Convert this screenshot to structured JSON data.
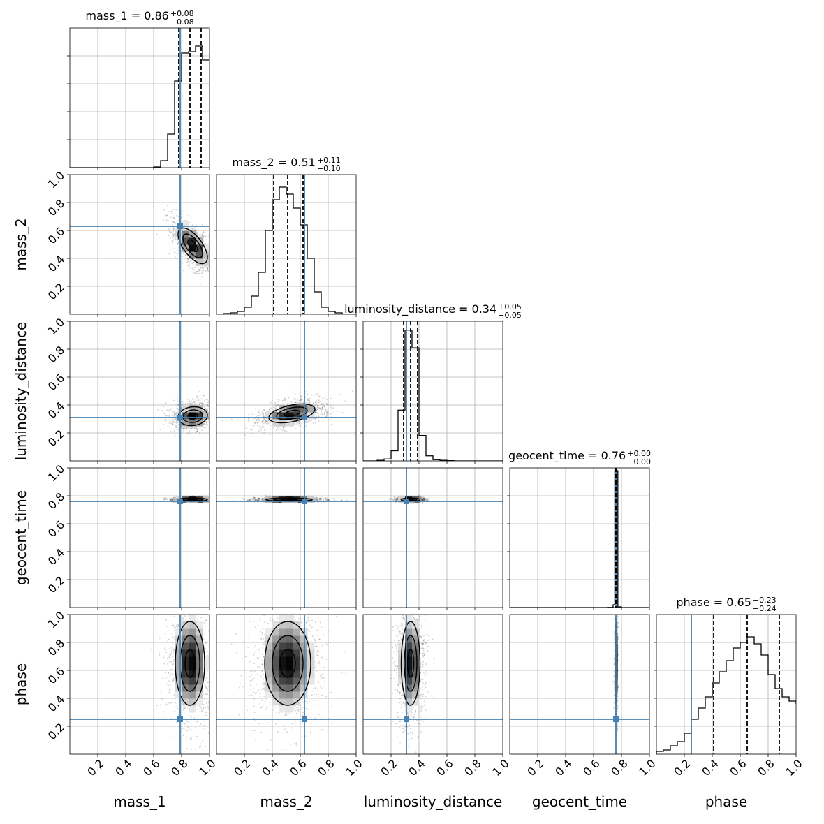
{
  "chart_data": {
    "type": "corner",
    "parameters": [
      {
        "name": "mass_1",
        "title": {
          "base": "mass_1 = 0.86",
          "plus": "+0.08",
          "minus": "−0.08"
        },
        "median": 0.86,
        "q_low": 0.78,
        "q_high": 0.94,
        "truth": 0.79,
        "hist_bins": [
          0.6,
          0.65,
          0.7,
          0.75,
          0.8,
          0.85,
          0.9,
          0.95,
          1.0
        ],
        "hist_values": [
          0.5,
          5,
          24,
          62,
          82,
          83,
          87,
          77,
          47
        ],
        "hist_ymax": 100
      },
      {
        "name": "mass_2",
        "title": {
          "base": "mass_2 = 0.51",
          "plus": "+0.11",
          "minus": "−0.10"
        },
        "median": 0.51,
        "q_low": 0.41,
        "q_high": 0.62,
        "truth": 0.63,
        "hist_bins": [
          0.05,
          0.1,
          0.15,
          0.2,
          0.25,
          0.3,
          0.35,
          0.4,
          0.45,
          0.5,
          0.55,
          0.6,
          0.65,
          0.7,
          0.75,
          0.8,
          0.85,
          0.9
        ],
        "hist_values": [
          0.5,
          1,
          2,
          5,
          13,
          30,
          60,
          82,
          91,
          86,
          76,
          64,
          40,
          16,
          5,
          2,
          1
        ],
        "hist_ymax": 100
      },
      {
        "name": "luminosity_distance",
        "title": {
          "base": "luminosity_distance = 0.34",
          "plus": "+0.05",
          "minus": "−0.05"
        },
        "median": 0.34,
        "q_low": 0.29,
        "q_high": 0.39,
        "truth": 0.31,
        "hist_bins": [
          0.1,
          0.15,
          0.2,
          0.25,
          0.3,
          0.35,
          0.4,
          0.45,
          0.5,
          0.55,
          0.6,
          0.65
        ],
        "hist_values": [
          0.5,
          1.5,
          8,
          40,
          103,
          89,
          20,
          4,
          1,
          0.5,
          0.2
        ],
        "hist_ymax": 110
      },
      {
        "name": "geocent_time",
        "title": {
          "base": "geocent_time = 0.76",
          "plus": "+0.00",
          "minus": "−0.00"
        },
        "median": 0.761,
        "q_low": 0.757,
        "q_high": 0.765,
        "truth": 0.76,
        "hist_bins": [
          0.7,
          0.74,
          0.752,
          0.759,
          0.766,
          0.774,
          0.8
        ],
        "hist_values": [
          0.1,
          2,
          98,
          50,
          98,
          0.5
        ],
        "hist_ymax": 100
      },
      {
        "name": "phase",
        "title": {
          "base": "phase = 0.65",
          "plus": "+0.23",
          "minus": "−0.24"
        },
        "median": 0.65,
        "q_low": 0.41,
        "q_high": 0.88,
        "truth": 0.25,
        "hist_bins": [
          0.0,
          0.05,
          0.1,
          0.15,
          0.2,
          0.25,
          0.3,
          0.35,
          0.4,
          0.45,
          0.5,
          0.55,
          0.6,
          0.65,
          0.7,
          0.75,
          0.8,
          0.85,
          0.9,
          0.95,
          1.0
        ],
        "hist_values": [
          2,
          3,
          6,
          9,
          15,
          25,
          33,
          41,
          51,
          59,
          67,
          76,
          80,
          84,
          79,
          71,
          57,
          47,
          41,
          38,
          36
        ],
        "hist_ymax": 100
      }
    ],
    "pair_densities": [
      {
        "x": "mass_1",
        "y": "mass_2",
        "cx": 0.88,
        "cy": 0.49,
        "sx": 0.07,
        "sy": 0.085,
        "rho": -0.65
      },
      {
        "x": "mass_1",
        "y": "luminosity_distance",
        "cx": 0.88,
        "cy": 0.32,
        "sx": 0.07,
        "sy": 0.045,
        "rho": 0.1
      },
      {
        "x": "mass_2",
        "y": "luminosity_distance",
        "cx": 0.54,
        "cy": 0.34,
        "sx": 0.11,
        "sy": 0.045,
        "rho": 0.45
      },
      {
        "x": "mass_1",
        "y": "geocent_time",
        "cx": 0.88,
        "cy": 0.772,
        "sx": 0.07,
        "sy": 0.008,
        "rho": 0.0
      },
      {
        "x": "mass_2",
        "y": "geocent_time",
        "cx": 0.52,
        "cy": 0.772,
        "sx": 0.11,
        "sy": 0.008,
        "rho": 0.0
      },
      {
        "x": "luminosity_distance",
        "y": "geocent_time",
        "cx": 0.34,
        "cy": 0.772,
        "sx": 0.045,
        "sy": 0.008,
        "rho": 0.0
      },
      {
        "x": "mass_1",
        "y": "phase",
        "cx": 0.86,
        "cy": 0.65,
        "sx": 0.07,
        "sy": 0.2,
        "rho": 0.0
      },
      {
        "x": "mass_2",
        "y": "phase",
        "cx": 0.51,
        "cy": 0.65,
        "sx": 0.11,
        "sy": 0.2,
        "rho": 0.0
      },
      {
        "x": "luminosity_distance",
        "y": "phase",
        "cx": 0.34,
        "cy": 0.65,
        "sx": 0.045,
        "sy": 0.2,
        "rho": 0.0
      },
      {
        "x": "geocent_time",
        "y": "phase",
        "cx": 0.762,
        "cy": 0.65,
        "sx": 0.005,
        "sy": 0.2,
        "rho": 0.0
      }
    ],
    "x_ticks": [
      "0.2",
      "0.4",
      "0.6",
      "0.8",
      "1.0"
    ],
    "y_ticks": [
      "0.2",
      "0.4",
      "0.6",
      "0.8",
      "1.0"
    ],
    "axis_range": [
      0,
      1
    ],
    "grid": true,
    "colors": {
      "truth": "#4682b4",
      "hist": "#000000",
      "quantile": "#000000",
      "density": "#000000"
    }
  }
}
